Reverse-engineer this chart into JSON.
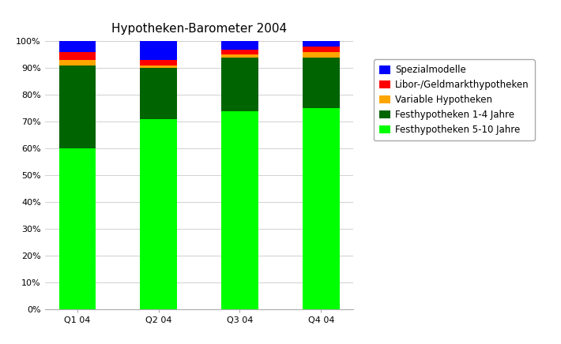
{
  "title": "Hypotheken-Barometer 2004",
  "categories": [
    "Q1 04",
    "Q2 04",
    "Q3 04",
    "Q4 04"
  ],
  "series": [
    {
      "label": "Festhypotheken 5-10 Jahre",
      "color": "#00FF00",
      "values": [
        60,
        71,
        74,
        75
      ]
    },
    {
      "label": "Festhypotheken 1-4 Jahre",
      "color": "#006400",
      "values": [
        31,
        19,
        20,
        19
      ]
    },
    {
      "label": "Variable Hypotheken",
      "color": "#FFA500",
      "values": [
        2,
        1,
        1,
        2
      ]
    },
    {
      "label": "Libor-/Geldmarkthypotheken",
      "color": "#FF0000",
      "values": [
        3,
        2,
        2,
        2
      ]
    },
    {
      "label": "Spezialmodelle",
      "color": "#0000FF",
      "values": [
        4,
        7,
        3,
        2
      ]
    }
  ],
  "ylim": [
    0,
    100
  ],
  "yticks": [
    0,
    10,
    20,
    30,
    40,
    50,
    60,
    70,
    80,
    90,
    100
  ],
  "ytick_labels": [
    "0%",
    "10%",
    "20%",
    "30%",
    "40%",
    "50%",
    "60%",
    "70%",
    "80%",
    "90%",
    "100%"
  ],
  "background_color": "#ffffff",
  "grid_color": "#d0d0d0",
  "title_fontsize": 11,
  "bar_width": 0.45,
  "legend_fontsize": 8.5,
  "tick_fontsize": 8
}
